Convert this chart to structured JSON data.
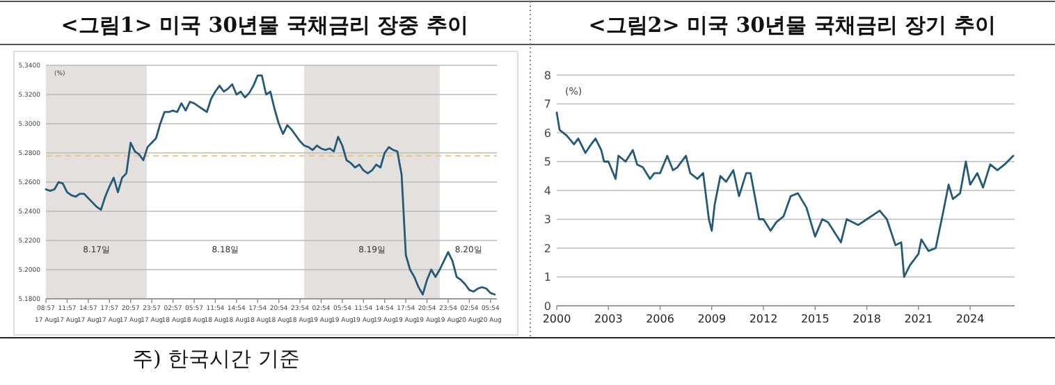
{
  "chart_data": [
    {
      "type": "line",
      "title": "<그림1> 미국 30년물 국채금리 장중 추이",
      "ylabel": "(%)",
      "grid": "y",
      "ylim": [
        5.18,
        5.34
      ],
      "yticks": [
        {
          "value": 5.18,
          "label": "5.1800"
        },
        {
          "value": 5.2,
          "label": "5.2000"
        },
        {
          "value": 5.22,
          "label": "5.2200"
        },
        {
          "value": 5.24,
          "label": "5.2400"
        },
        {
          "value": 5.26,
          "label": "5.2600"
        },
        {
          "value": 5.28,
          "label": "5.2800"
        },
        {
          "value": 5.3,
          "label": "5.3000"
        },
        {
          "value": 5.32,
          "label": "5.3200"
        },
        {
          "value": 5.34,
          "label": "5.3400"
        }
      ],
      "categories": [
        "08:57 17 Aug",
        null,
        null,
        null,
        null,
        "11:57 17 Aug",
        null,
        null,
        null,
        null,
        "14:57 17 Aug",
        null,
        null,
        null,
        null,
        "17:57 17 Aug",
        null,
        null,
        null,
        null,
        "20:57 17 Aug",
        null,
        null,
        null,
        null,
        "23:57 17 Aug",
        null,
        null,
        null,
        null,
        "02:57 18 Aug",
        null,
        null,
        null,
        null,
        "05:57 18 Aug",
        null,
        null,
        null,
        null,
        "11:54 18 Aug",
        null,
        null,
        null,
        null,
        "14:54 18 Aug",
        null,
        null,
        null,
        null,
        "17:54 18 Aug",
        null,
        null,
        null,
        null,
        "20:54 18 Aug",
        null,
        null,
        null,
        null,
        "23:54 18 Aug",
        null,
        null,
        null,
        null,
        "02:54 19 Aug",
        null,
        null,
        null,
        null,
        "05:54 19 Aug",
        null,
        null,
        null,
        null,
        "11:54 19 Aug",
        null,
        null,
        null,
        null,
        "14:54 19 Aug",
        null,
        null,
        null,
        null,
        "17:54 19 Aug",
        null,
        null,
        null,
        null,
        "20:54 19 Aug",
        null,
        null,
        null,
        null,
        "23:54 19 Aug",
        null,
        null,
        null,
        null,
        "02:54 20 Aug",
        null,
        null,
        null,
        null,
        "05:54 20 Aug",
        null
      ],
      "series": [
        {
          "color": "#235a78",
          "values": [
            5.255,
            5.254,
            5.255,
            5.26,
            5.259,
            5.253,
            5.251,
            5.25,
            5.252,
            5.252,
            5.249,
            5.246,
            5.243,
            5.241,
            5.25,
            5.257,
            5.263,
            5.253,
            5.263,
            5.266,
            5.287,
            5.281,
            5.279,
            5.275,
            5.284,
            5.287,
            5.29,
            5.3,
            5.308,
            5.308,
            5.309,
            5.308,
            5.314,
            5.309,
            5.315,
            5.314,
            5.312,
            5.31,
            5.308,
            5.317,
            5.322,
            5.326,
            5.322,
            5.324,
            5.327,
            5.32,
            5.322,
            5.318,
            5.321,
            5.326,
            5.333,
            5.333,
            5.32,
            5.322,
            5.31,
            5.3,
            5.293,
            5.299,
            5.296,
            5.292,
            5.288,
            5.285,
            5.284,
            5.282,
            5.285,
            5.283,
            5.282,
            5.283,
            5.281,
            5.291,
            5.285,
            5.275,
            5.273,
            5.27,
            5.272,
            5.268,
            5.266,
            5.268,
            5.272,
            5.27,
            5.28,
            5.284,
            5.282,
            5.281,
            5.265,
            5.21,
            5.2,
            5.195,
            5.188,
            5.183,
            5.193,
            5.2,
            5.195,
            5.2,
            5.206,
            5.212,
            5.206,
            5.195,
            5.193,
            5.19,
            5.186,
            5.185,
            5.187,
            5.188,
            5.187,
            5.184,
            5.183
          ]
        }
      ],
      "ref_lines": [
        {
          "axis": "y",
          "value": 5.278,
          "color": "#f2c27a",
          "line_style": "dashed"
        }
      ],
      "annotations": [
        "8.17일",
        "8.18일",
        "8.19일",
        "8.20일",
        "주) 한국시간 기준"
      ]
    },
    {
      "type": "line",
      "title": "<그림2> 미국 30년물 국채금리 장기 추이",
      "ylabel": "(%)",
      "grid": "y",
      "xlim": [
        "2000-01",
        "2026-08"
      ],
      "ylim": [
        0,
        8
      ],
      "xticks": [
        {
          "value": "2000-01",
          "label": "2000"
        },
        {
          "value": "2003-01",
          "label": "2003"
        },
        {
          "value": "2006-01",
          "label": "2006"
        },
        {
          "value": "2009-01",
          "label": "2009"
        },
        {
          "value": "2012-01",
          "label": "2012"
        },
        {
          "value": "2015-01",
          "label": "2015"
        },
        {
          "value": "2018-01",
          "label": "2018"
        },
        {
          "value": "2021-01",
          "label": "2021"
        },
        {
          "value": "2024-01",
          "label": "2024"
        }
      ],
      "yticks": [
        0,
        1,
        2,
        3,
        4,
        5,
        6,
        7,
        8
      ],
      "x": [
        "2000-01",
        "2000-03",
        "2000-08",
        "2001-01",
        "2001-04",
        "2001-09",
        "2002-01",
        "2002-04",
        "2002-08",
        "2002-10",
        "2003-01",
        "2003-06",
        "2003-08",
        "2004-01",
        "2004-06",
        "2004-09",
        "2005-01",
        "2005-06",
        "2005-09",
        "2006-01",
        "2006-06",
        "2006-10",
        "2007-01",
        "2007-07",
        "2007-10",
        "2008-03",
        "2008-07",
        "2008-11",
        "2009-01",
        "2009-03",
        "2009-07",
        "2009-11",
        "2010-04",
        "2010-08",
        "2011-01",
        "2011-04",
        "2011-10",
        "2012-01",
        "2012-06",
        "2012-10",
        "2013-03",
        "2013-08",
        "2014-01",
        "2014-07",
        "2015-01",
        "2015-06",
        "2015-10",
        "2016-07",
        "2016-11",
        "2017-07",
        "2018-01",
        "2018-10",
        "2019-03",
        "2019-09",
        "2020-01",
        "2020-03",
        "2020-07",
        "2021-01",
        "2021-03",
        "2021-08",
        "2022-01",
        "2022-06",
        "2022-10",
        "2023-01",
        "2023-06",
        "2023-10",
        "2024-01",
        "2024-06",
        "2024-10",
        "2025-03",
        "2025-08",
        "2026-01",
        "2026-07"
      ],
      "series": [
        {
          "color": "#235a78",
          "values": [
            6.7,
            6.1,
            5.9,
            5.6,
            5.8,
            5.3,
            5.6,
            5.8,
            5.4,
            5.0,
            5.0,
            4.4,
            5.2,
            5.0,
            5.4,
            4.9,
            4.8,
            4.4,
            4.6,
            4.6,
            5.2,
            4.7,
            4.8,
            5.2,
            4.6,
            4.4,
            4.6,
            3.0,
            2.6,
            3.5,
            4.5,
            4.3,
            4.7,
            3.8,
            4.6,
            4.6,
            3.0,
            3.0,
            2.6,
            2.9,
            3.1,
            3.8,
            3.9,
            3.4,
            2.4,
            3.0,
            2.9,
            2.2,
            3.0,
            2.8,
            3.0,
            3.3,
            3.0,
            2.1,
            2.2,
            1.0,
            1.4,
            1.8,
            2.3,
            1.9,
            2.0,
            3.2,
            4.2,
            3.7,
            3.9,
            5.0,
            4.2,
            4.6,
            4.1,
            4.9,
            4.7,
            4.9,
            5.2
          ]
        }
      ]
    }
  ]
}
